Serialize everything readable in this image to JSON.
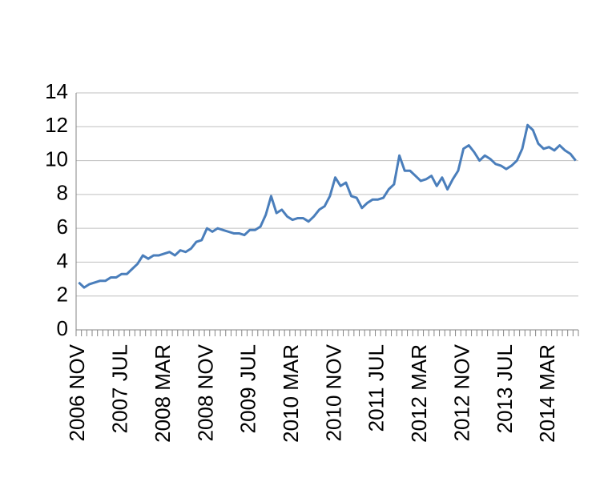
{
  "chart_data": {
    "type": "line",
    "categories": [
      "2006 NOV",
      null,
      null,
      null,
      null,
      null,
      null,
      null,
      "2007 JUL",
      null,
      null,
      null,
      null,
      null,
      null,
      null,
      "2008 MAR",
      null,
      null,
      null,
      null,
      null,
      null,
      null,
      "2008 NOV",
      null,
      null,
      null,
      null,
      null,
      null,
      null,
      "2009 JUL",
      null,
      null,
      null,
      null,
      null,
      null,
      null,
      "2010 MAR",
      null,
      null,
      null,
      null,
      null,
      null,
      null,
      "2010 NOV",
      null,
      null,
      null,
      null,
      null,
      null,
      null,
      "2011 JUL",
      null,
      null,
      null,
      null,
      null,
      null,
      null,
      "2012 MAR",
      null,
      null,
      null,
      null,
      null,
      null,
      null,
      "2012 NOV",
      null,
      null,
      null,
      null,
      null,
      null,
      null,
      "2013 JUL",
      null,
      null,
      null,
      null,
      null,
      null,
      null,
      "2014 MAR",
      null,
      null,
      null,
      null,
      null
    ],
    "values": [
      2.8,
      2.5,
      2.7,
      2.8,
      2.9,
      2.9,
      3.1,
      3.1,
      3.3,
      3.3,
      3.6,
      3.9,
      4.4,
      4.2,
      4.4,
      4.4,
      4.5,
      4.6,
      4.4,
      4.7,
      4.6,
      4.8,
      5.2,
      5.3,
      6.0,
      5.8,
      6.0,
      5.9,
      5.8,
      5.7,
      5.7,
      5.6,
      5.9,
      5.9,
      6.1,
      6.8,
      7.9,
      6.9,
      7.1,
      6.7,
      6.5,
      6.6,
      6.6,
      6.4,
      6.7,
      7.1,
      7.3,
      7.9,
      9.0,
      8.5,
      8.7,
      7.9,
      7.8,
      7.2,
      7.5,
      7.7,
      7.7,
      7.8,
      8.3,
      8.6,
      10.3,
      9.4,
      9.4,
      9.1,
      8.8,
      8.9,
      9.1,
      8.5,
      9.0,
      8.3,
      8.9,
      9.4,
      10.7,
      10.9,
      10.5,
      10.0,
      10.3,
      10.1,
      9.8,
      9.7,
      9.5,
      9.7,
      10.0,
      10.7,
      12.1,
      11.8,
      11.0,
      10.7,
      10.8,
      10.6,
      10.9,
      10.6,
      10.4,
      10.0
    ],
    "color": "#4a7ebb",
    "ylim": [
      0,
      14
    ],
    "yticks": [
      0,
      2,
      4,
      6,
      8,
      10,
      12,
      14
    ],
    "grid": true
  }
}
